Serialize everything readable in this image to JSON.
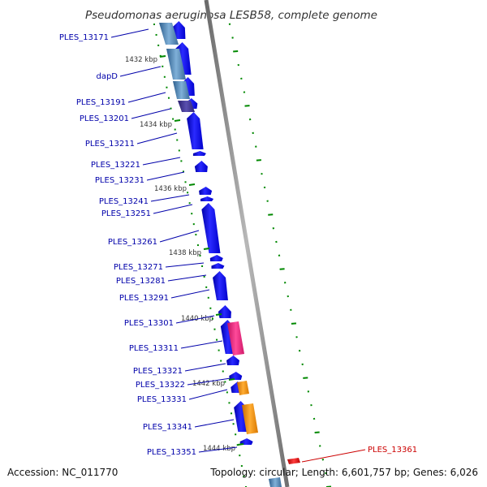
{
  "title": "Pseudomonas aeruginosa LESB58, complete genome",
  "footer": {
    "accession": "Accession: NC_011770",
    "summary": "Topology: circular; Length: 6,601,757 bp; Genes: 6,026"
  },
  "colors": {
    "forward_gene": "#0000ee",
    "reverse_gene": "#4a7fb0",
    "reverse_gene_dark": "#3a2f8a",
    "pink_gene": "#e8207a",
    "orange_gene": "#f08c00",
    "red_gene": "#dd0000",
    "label_blue": "#0000aa",
    "label_red": "#cc0000",
    "tick_green": "#008800",
    "backbone": "#888888"
  },
  "kbp_ticks": [
    "1432 kbp",
    "1434 kbp",
    "1436 kbp",
    "1438 kbp",
    "1440 kbp",
    "1442 kbp",
    "1444 kbp"
  ],
  "genes": [
    {
      "label": "PLES_13171",
      "color": "label_blue"
    },
    {
      "label": "dapD",
      "color": "label_blue"
    },
    {
      "label": "PLES_13191",
      "color": "label_blue"
    },
    {
      "label": "PLES_13201",
      "color": "label_blue"
    },
    {
      "label": "PLES_13211",
      "color": "label_blue"
    },
    {
      "label": "PLES_13221",
      "color": "label_blue"
    },
    {
      "label": "PLES_13231",
      "color": "label_blue"
    },
    {
      "label": "PLES_13241",
      "color": "label_blue"
    },
    {
      "label": "PLES_13251",
      "color": "label_blue"
    },
    {
      "label": "PLES_13261",
      "color": "label_blue"
    },
    {
      "label": "PLES_13271",
      "color": "label_blue"
    },
    {
      "label": "PLES_13281",
      "color": "label_blue"
    },
    {
      "label": "PLES_13291",
      "color": "label_blue"
    },
    {
      "label": "PLES_13301",
      "color": "label_blue"
    },
    {
      "label": "PLES_13311",
      "color": "label_blue"
    },
    {
      "label": "PLES_13321",
      "color": "label_blue"
    },
    {
      "label": "PLES_13322",
      "color": "label_blue"
    },
    {
      "label": "PLES_13331",
      "color": "label_blue"
    },
    {
      "label": "PLES_13341",
      "color": "label_blue"
    },
    {
      "label": "PLES_13351",
      "color": "label_blue"
    },
    {
      "label": "PLES_13361",
      "color": "label_red"
    }
  ]
}
